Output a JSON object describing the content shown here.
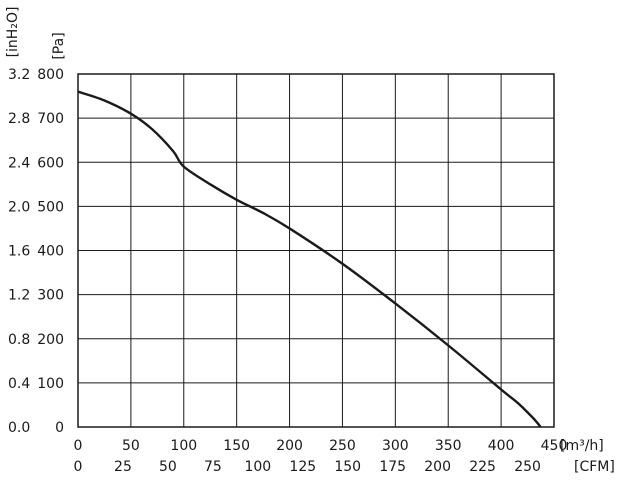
{
  "chart_data": {
    "type": "line",
    "title": "",
    "x_primary": {
      "unit_label": "[m³/h]",
      "range": [
        0,
        450
      ],
      "ticks": [
        0,
        50,
        100,
        150,
        200,
        250,
        300,
        350,
        400,
        450
      ]
    },
    "x_secondary": {
      "unit_label": "[CFM]",
      "ticks": [
        "0",
        "25",
        "50",
        "75",
        "100",
        "125",
        "150",
        "175",
        "200",
        "225",
        "250"
      ]
    },
    "y_primary": {
      "unit_label": "[Pa]",
      "range": [
        0,
        800
      ],
      "ticks": [
        0,
        100,
        200,
        300,
        400,
        500,
        600,
        700,
        800
      ]
    },
    "y_secondary": {
      "unit_label": "[inH₂O]",
      "ticks": [
        "0.0",
        "0.4",
        "0.8",
        "1.2",
        "1.6",
        "2.0",
        "2.4",
        "2.8",
        "3.2"
      ]
    },
    "grid": true,
    "series": [
      {
        "x": [
          0,
          25,
          50,
          70,
          90,
          100,
          125,
          150,
          175,
          200,
          250,
          300,
          350,
          400,
          420,
          440,
          450
        ],
        "y": [
          760,
          740,
          710,
          675,
          625,
          590,
          550,
          515,
          485,
          450,
          370,
          280,
          185,
          85,
          45,
          -10,
          -80
        ]
      }
    ]
  }
}
